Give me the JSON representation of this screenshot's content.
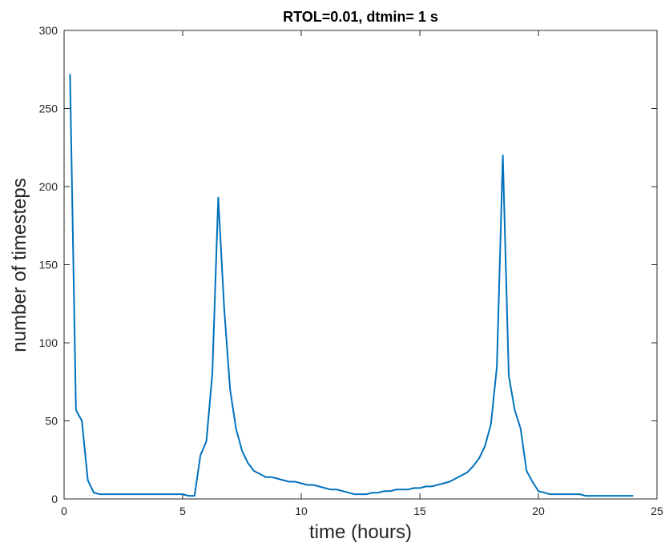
{
  "chart_data": {
    "type": "line",
    "title": "RTOL=0.01, dtmin= 1 s",
    "xlabel": "time (hours)",
    "ylabel": "number of timesteps",
    "xlim": [
      0,
      25
    ],
    "ylim": [
      0,
      300
    ],
    "xticks": [
      0,
      5,
      10,
      15,
      20,
      25
    ],
    "yticks": [
      0,
      50,
      100,
      150,
      200,
      250,
      300
    ],
    "grid": false,
    "box": true,
    "series": [
      {
        "color": "#0072BD",
        "x": [
          0.25,
          0.5,
          0.75,
          1.0,
          1.25,
          1.5,
          1.75,
          2.0,
          2.25,
          2.5,
          2.75,
          3.0,
          3.25,
          3.5,
          3.75,
          4.0,
          4.25,
          4.5,
          4.75,
          5.0,
          5.25,
          5.5,
          5.75,
          6.0,
          6.25,
          6.5,
          6.75,
          7.0,
          7.25,
          7.5,
          7.75,
          8.0,
          8.25,
          8.5,
          8.75,
          9.0,
          9.25,
          9.5,
          9.75,
          10.0,
          10.25,
          10.5,
          10.75,
          11.0,
          11.25,
          11.5,
          11.75,
          12.0,
          12.25,
          12.5,
          12.75,
          13.0,
          13.25,
          13.5,
          13.75,
          14.0,
          14.25,
          14.5,
          14.75,
          15.0,
          15.25,
          15.5,
          15.75,
          16.0,
          16.25,
          16.5,
          16.75,
          17.0,
          17.25,
          17.5,
          17.75,
          18.0,
          18.25,
          18.5,
          18.75,
          19.0,
          19.25,
          19.5,
          19.75,
          20.0,
          20.25,
          20.5,
          20.75,
          21.0,
          21.25,
          21.5,
          21.75,
          22.0,
          22.25,
          22.5,
          22.75,
          23.0,
          23.25,
          23.5,
          23.75,
          24.0
        ],
        "y": [
          272,
          57,
          50,
          12,
          4,
          3,
          3,
          3,
          3,
          3,
          3,
          3,
          3,
          3,
          3,
          3,
          3,
          3,
          3,
          3,
          2,
          2,
          28,
          37,
          80,
          193,
          122,
          70,
          45,
          31,
          23,
          18,
          16,
          14,
          14,
          13,
          12,
          11,
          11,
          10,
          9,
          9,
          8,
          7,
          6,
          6,
          5,
          4,
          3,
          3,
          3,
          4,
          4,
          5,
          5,
          6,
          6,
          6,
          7,
          7,
          8,
          8,
          9,
          10,
          11,
          13,
          15,
          17,
          21,
          26,
          34,
          48,
          85,
          220,
          79,
          57,
          45,
          18,
          11,
          5,
          4,
          3,
          3,
          3,
          3,
          3,
          3,
          2,
          2,
          2,
          2,
          2,
          2,
          2,
          2,
          2
        ]
      }
    ]
  }
}
